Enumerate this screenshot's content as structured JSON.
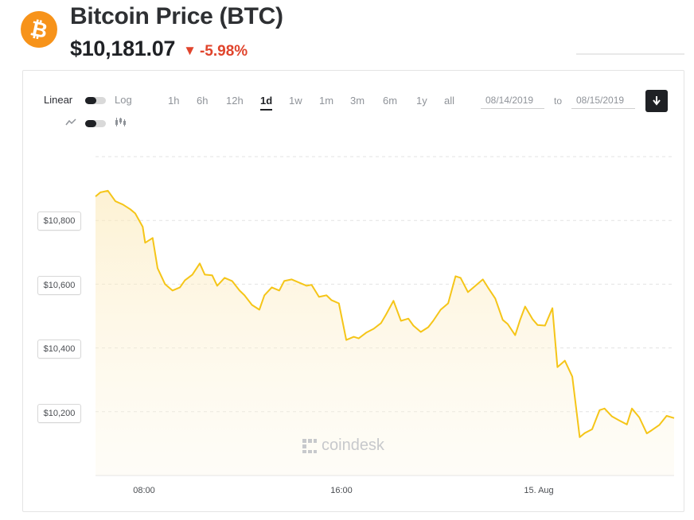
{
  "header": {
    "logo_glyph": "₿",
    "title": "Bitcoin Price",
    "ticker": "(BTC)",
    "price": "$10,181.07",
    "change_arrow": "▼",
    "change": "-5.98%",
    "change_color": "#e0442c",
    "logo_color": "#f7931a"
  },
  "controls": {
    "scale_linear": "Linear",
    "scale_log": "Log",
    "chart_type_line_icon": "line-chart-icon",
    "chart_type_candle_icon": "candlestick-icon",
    "ranges": [
      "1h",
      "6h",
      "12h",
      "1d",
      "1w",
      "1m",
      "3m",
      "6m",
      "1y",
      "all"
    ],
    "active_range": "1d",
    "date_from": "08/14/2019",
    "date_to": "08/15/2019",
    "to_label": "to",
    "download_icon": "download-icon"
  },
  "watermark": "coindesk",
  "chart_data": {
    "type": "area",
    "title": "",
    "xlabel": "",
    "ylabel": "",
    "line_color": "#f5c518",
    "y_ticks": [
      "$10,200",
      "$10,400",
      "$10,600",
      "$10,800"
    ],
    "y_tick_values": [
      10200,
      10400,
      10600,
      10800
    ],
    "x_ticks": [
      "08:00",
      "16:00",
      "15. Aug"
    ],
    "x_tick_hours": [
      8,
      16,
      24
    ],
    "xlim_hours": [
      6,
      29.3
    ],
    "ylim": [
      10000,
      11000
    ],
    "grid": true,
    "series": [
      {
        "x_hours": [
          6.0,
          6.2,
          6.5,
          6.8,
          7.1,
          7.4,
          7.6,
          7.9,
          8.0,
          8.3,
          8.5,
          8.8,
          9.1,
          9.4,
          9.6,
          9.9,
          10.2,
          10.4,
          10.7,
          10.9,
          11.2,
          11.5,
          11.8,
          12.0,
          12.3,
          12.6,
          12.8,
          13.1,
          13.4,
          13.6,
          13.9,
          14.2,
          14.5,
          14.7,
          15.0,
          15.3,
          15.5,
          15.8,
          16.1,
          16.4,
          16.6,
          16.9,
          17.2,
          17.5,
          17.7,
          18.0,
          18.3,
          18.6,
          18.8,
          19.1,
          19.4,
          19.6,
          19.9,
          20.2,
          20.5,
          20.7,
          21.0,
          21.3,
          21.6,
          21.8,
          22.1,
          22.4,
          22.6,
          22.9,
          23.1,
          23.3,
          23.6,
          23.8,
          24.1,
          24.4,
          24.6,
          24.9,
          25.2,
          25.5,
          25.7,
          26.0,
          26.3,
          26.5,
          26.8,
          27.1,
          27.4,
          27.6,
          27.9,
          28.2,
          28.4,
          28.7,
          29.0,
          29.3
        ],
        "values": [
          10875,
          10888,
          10893,
          10860,
          10850,
          10835,
          10822,
          10780,
          10730,
          10745,
          10650,
          10600,
          10580,
          10590,
          10612,
          10630,
          10665,
          10630,
          10628,
          10595,
          10620,
          10610,
          10580,
          10565,
          10535,
          10520,
          10565,
          10590,
          10580,
          10610,
          10615,
          10605,
          10595,
          10598,
          10560,
          10565,
          10550,
          10540,
          10425,
          10435,
          10430,
          10448,
          10460,
          10478,
          10505,
          10548,
          10485,
          10492,
          10470,
          10450,
          10465,
          10485,
          10520,
          10540,
          10625,
          10620,
          10575,
          10595,
          10615,
          10590,
          10555,
          10488,
          10475,
          10440,
          10488,
          10530,
          10490,
          10472,
          10470,
          10525,
          10340,
          10360,
          10310,
          10120,
          10133,
          10145,
          10205,
          10210,
          10185,
          10172,
          10160,
          10210,
          10182,
          10132,
          10142,
          10158,
          10187,
          10180
        ]
      }
    ]
  }
}
